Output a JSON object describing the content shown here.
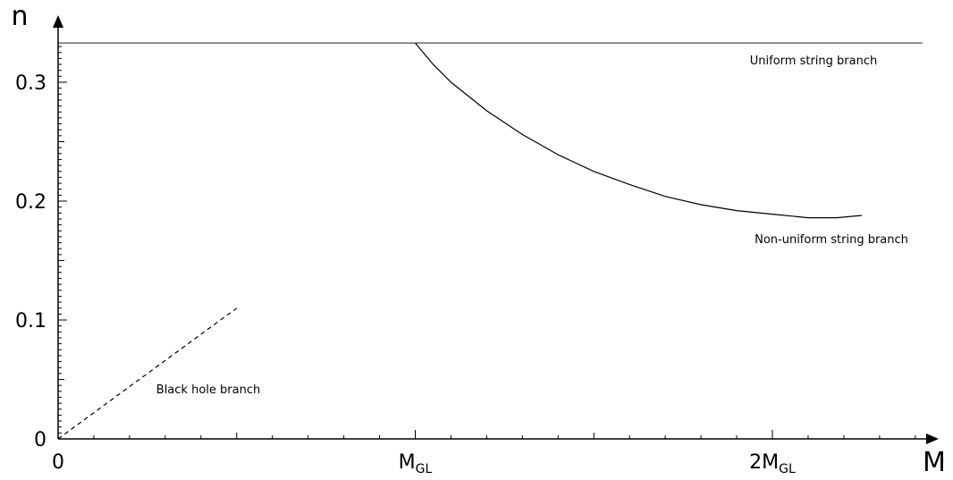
{
  "chart_data": {
    "type": "line",
    "xlabel": "M",
    "ylabel": "n",
    "xlim": [
      0,
      2.45
    ],
    "ylim": [
      0,
      0.335
    ],
    "x_ticks": [
      {
        "value": 0,
        "main": "0",
        "sub": ""
      },
      {
        "value": 1,
        "main": "M",
        "sub": "GL"
      },
      {
        "value": 2,
        "main": "2M",
        "sub": "GL"
      }
    ],
    "y_ticks": [
      {
        "value": 0,
        "label": "0"
      },
      {
        "value": 0.1,
        "label": "0.1"
      },
      {
        "value": 0.2,
        "label": "0.2"
      },
      {
        "value": 0.3,
        "label": "0.3"
      }
    ],
    "grid": false,
    "legend": "none",
    "series": [
      {
        "name": "Uniform string branch",
        "style": "solid",
        "x": [
          0,
          2.42
        ],
        "y": [
          0.333,
          0.333
        ]
      },
      {
        "name": "Non-uniform string branch",
        "style": "solid",
        "x": [
          1.0,
          1.05,
          1.1,
          1.2,
          1.3,
          1.4,
          1.5,
          1.6,
          1.7,
          1.8,
          1.9,
          2.0,
          2.1,
          2.18,
          2.25
        ],
        "y": [
          0.333,
          0.315,
          0.3,
          0.276,
          0.256,
          0.239,
          0.225,
          0.214,
          0.204,
          0.197,
          0.192,
          0.189,
          0.186,
          0.186,
          0.188
        ]
      },
      {
        "name": "Black hole branch",
        "style": "dashed",
        "x": [
          0,
          0.5
        ],
        "y": [
          0,
          0.11
        ]
      }
    ]
  }
}
